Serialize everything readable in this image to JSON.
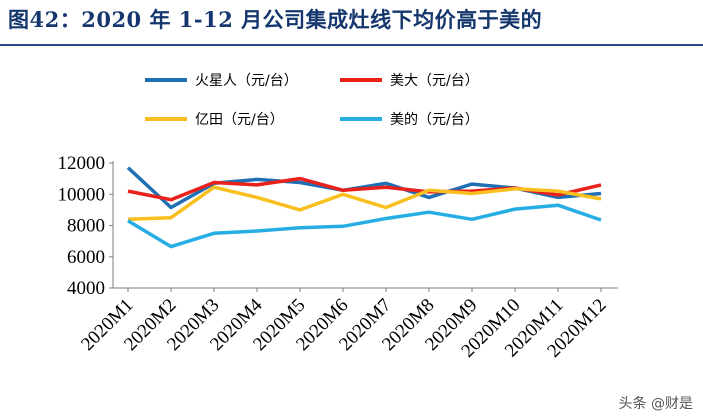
{
  "title": "图42：2020 年 1-12 月公司集成灶线下均价高于美的",
  "watermark": "头条 @财是",
  "chart_data": {
    "type": "line",
    "title": "",
    "xlabel": "",
    "ylabel": "",
    "ylim": [
      4000,
      12000
    ],
    "yticks": [
      4000,
      6000,
      8000,
      10000,
      12000
    ],
    "grid": false,
    "legend_position": "top",
    "categories": [
      "2020M1",
      "2020M2",
      "2020M3",
      "2020M4",
      "2020M5",
      "2020M6",
      "2020M7",
      "2020M8",
      "2020M9",
      "2020M10",
      "2020M11",
      "2020M12"
    ],
    "series": [
      {
        "name": "火星人（元/台）",
        "color": "#1f6fb4",
        "values": [
          11700,
          9150,
          10700,
          10950,
          10750,
          10250,
          10700,
          9800,
          10650,
          10400,
          9800,
          10050
        ]
      },
      {
        "name": "美大（元/台）",
        "color": "#e8211b",
        "values": [
          10200,
          9650,
          10750,
          10600,
          11000,
          10250,
          10450,
          10150,
          10200,
          10400,
          9950,
          10600
        ]
      },
      {
        "name": "亿田（元/台）",
        "color": "#f9bf1e",
        "values": [
          8400,
          8500,
          10450,
          9800,
          9000,
          10000,
          9150,
          10250,
          10050,
          10350,
          10200,
          9700
        ]
      },
      {
        "name": "美的（元/台）",
        "color": "#26aee4",
        "values": [
          8300,
          6650,
          7500,
          7650,
          7850,
          7950,
          8450,
          8850,
          8400,
          9050,
          9300,
          8350
        ]
      }
    ]
  }
}
